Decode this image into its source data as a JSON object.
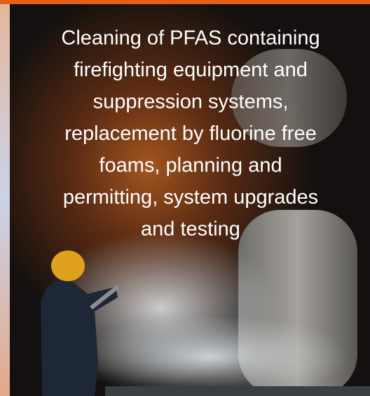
{
  "card": {
    "text_lines": [
      "Cleaning of PFAS containing",
      "firefighting equipment and",
      "suppression systems,",
      "replacement by fluorine free",
      "foams, planning and",
      "permitting, system upgrades",
      "and testing"
    ]
  }
}
